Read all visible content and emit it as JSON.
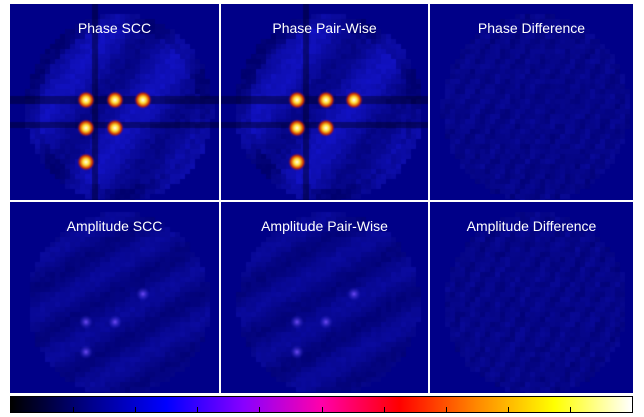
{
  "panels": [
    {
      "title": "Phase SCC",
      "kind": "phase"
    },
    {
      "title": "Phase Pair-Wise",
      "kind": "phase"
    },
    {
      "title": "Phase Difference",
      "kind": "diff"
    },
    {
      "title": "Amplitude SCC",
      "kind": "amp"
    },
    {
      "title": "Amplitude Pair-Wise",
      "kind": "amp"
    },
    {
      "title": "Amplitude Difference",
      "kind": "diff"
    }
  ],
  "colormap": {
    "stops": [
      "#000000",
      "#000088",
      "#0000ff",
      "#8800ff",
      "#ff00aa",
      "#ff0000",
      "#ff8800",
      "#ffff00",
      "#ffffff"
    ],
    "ticks": 10
  },
  "colors": {
    "background": "#000088",
    "spot": "#ffff88",
    "separator": "#ffffff"
  }
}
